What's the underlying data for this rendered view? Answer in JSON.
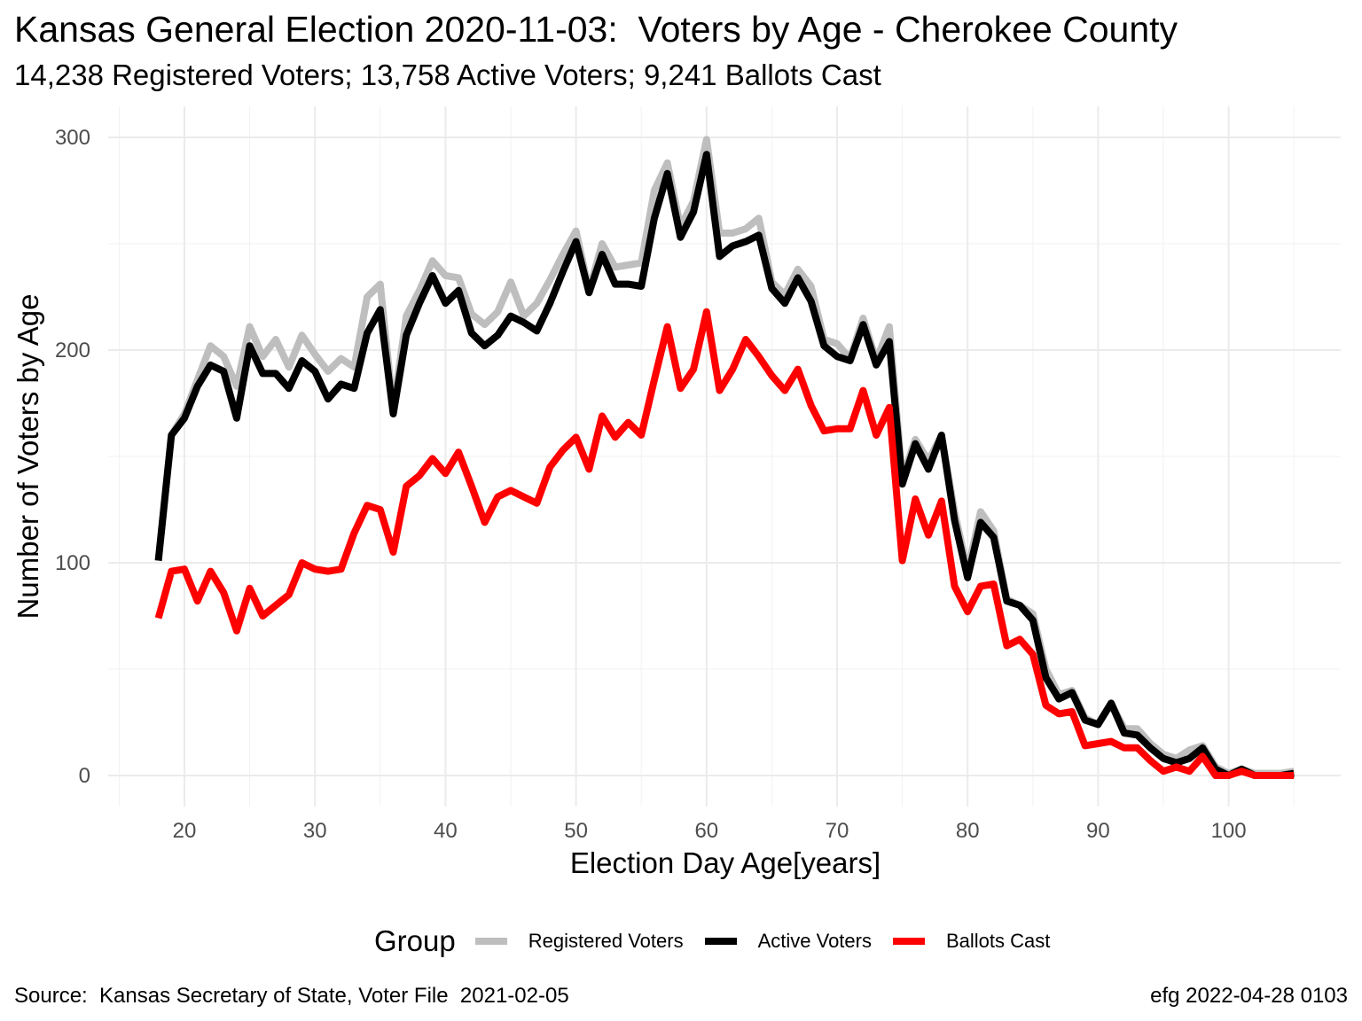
{
  "title": "Kansas General Election 2020-11-03:  Voters by Age - Cherokee County",
  "subtitle": "14,238 Registered Voters; 13,758 Active Voters; 9,241 Ballots Cast",
  "caption_left": "Source:  Kansas Secretary of State, Voter File  2021-02-05",
  "caption_right": "efg 2022-04-28 0103",
  "legend_title": "Group",
  "chart_data": {
    "type": "line",
    "title": "Kansas General Election 2020-11-03:  Voters by Age - Cherokee County",
    "xlabel": "Election Day Age[years]",
    "ylabel": "Number of Voters by Age",
    "xlim": [
      18,
      105
    ],
    "ylim": [
      0,
      300
    ],
    "x_ticks": [
      20,
      30,
      40,
      50,
      60,
      70,
      80,
      90,
      100
    ],
    "y_ticks": [
      0,
      100,
      200,
      300
    ],
    "grid": true,
    "legend_position": "bottom",
    "x": [
      18,
      19,
      20,
      21,
      22,
      23,
      24,
      25,
      26,
      27,
      28,
      29,
      30,
      31,
      32,
      33,
      34,
      35,
      36,
      37,
      38,
      39,
      40,
      41,
      42,
      43,
      44,
      45,
      46,
      47,
      48,
      49,
      50,
      51,
      52,
      53,
      54,
      55,
      56,
      57,
      58,
      59,
      60,
      61,
      62,
      63,
      64,
      65,
      66,
      67,
      68,
      69,
      70,
      71,
      72,
      73,
      74,
      75,
      76,
      77,
      78,
      79,
      80,
      81,
      82,
      83,
      84,
      85,
      86,
      87,
      88,
      89,
      90,
      91,
      92,
      93,
      94,
      95,
      96,
      97,
      98,
      99,
      100,
      101,
      102,
      103,
      104,
      105
    ],
    "series": [
      {
        "name": "Registered Voters",
        "color": "#bebebe",
        "values": [
          101,
          160,
          170,
          186,
          202,
          197,
          183,
          211,
          197,
          205,
          192,
          207,
          198,
          190,
          196,
          192,
          225,
          231,
          172,
          216,
          228,
          242,
          235,
          234,
          217,
          212,
          218,
          232,
          216,
          222,
          233,
          245,
          256,
          228,
          250,
          239,
          240,
          241,
          275,
          288,
          258,
          270,
          299,
          255,
          255,
          257,
          262,
          232,
          226,
          238,
          230,
          205,
          203,
          196,
          215,
          195,
          211,
          140,
          158,
          148,
          160,
          124,
          96,
          124,
          115,
          83,
          80,
          76,
          50,
          38,
          40,
          27,
          24,
          34,
          22,
          22,
          15,
          10,
          8,
          12,
          14,
          4,
          1,
          3,
          1,
          1,
          1,
          2
        ]
      },
      {
        "name": "Active Voters",
        "color": "#000000",
        "values": [
          101,
          160,
          168,
          183,
          193,
          190,
          168,
          202,
          189,
          189,
          182,
          195,
          190,
          177,
          184,
          182,
          208,
          219,
          170,
          207,
          222,
          235,
          222,
          228,
          208,
          202,
          207,
          216,
          213,
          209,
          222,
          237,
          251,
          227,
          245,
          231,
          231,
          230,
          262,
          283,
          253,
          265,
          292,
          244,
          249,
          251,
          254,
          229,
          222,
          234,
          223,
          202,
          197,
          195,
          212,
          193,
          204,
          137,
          156,
          144,
          160,
          120,
          93,
          119,
          112,
          82,
          80,
          73,
          46,
          36,
          39,
          26,
          24,
          34,
          20,
          19,
          13,
          8,
          6,
          8,
          13,
          3,
          0,
          3,
          0,
          0,
          0,
          1
        ]
      },
      {
        "name": "Ballots Cast",
        "color": "#ff0000",
        "values": [
          74,
          96,
          97,
          82,
          96,
          86,
          68,
          88,
          75,
          80,
          85,
          100,
          97,
          96,
          97,
          114,
          127,
          125,
          105,
          136,
          141,
          149,
          142,
          152,
          136,
          119,
          131,
          134,
          131,
          128,
          145,
          153,
          159,
          144,
          169,
          159,
          166,
          160,
          186,
          211,
          182,
          191,
          218,
          181,
          191,
          205,
          197,
          188,
          181,
          191,
          174,
          162,
          163,
          163,
          181,
          160,
          173,
          101,
          130,
          113,
          129,
          89,
          77,
          89,
          90,
          61,
          64,
          57,
          33,
          29,
          30,
          14,
          15,
          16,
          13,
          13,
          7,
          2,
          4,
          2,
          9,
          0,
          0,
          2,
          0,
          0,
          0,
          0
        ]
      }
    ]
  }
}
